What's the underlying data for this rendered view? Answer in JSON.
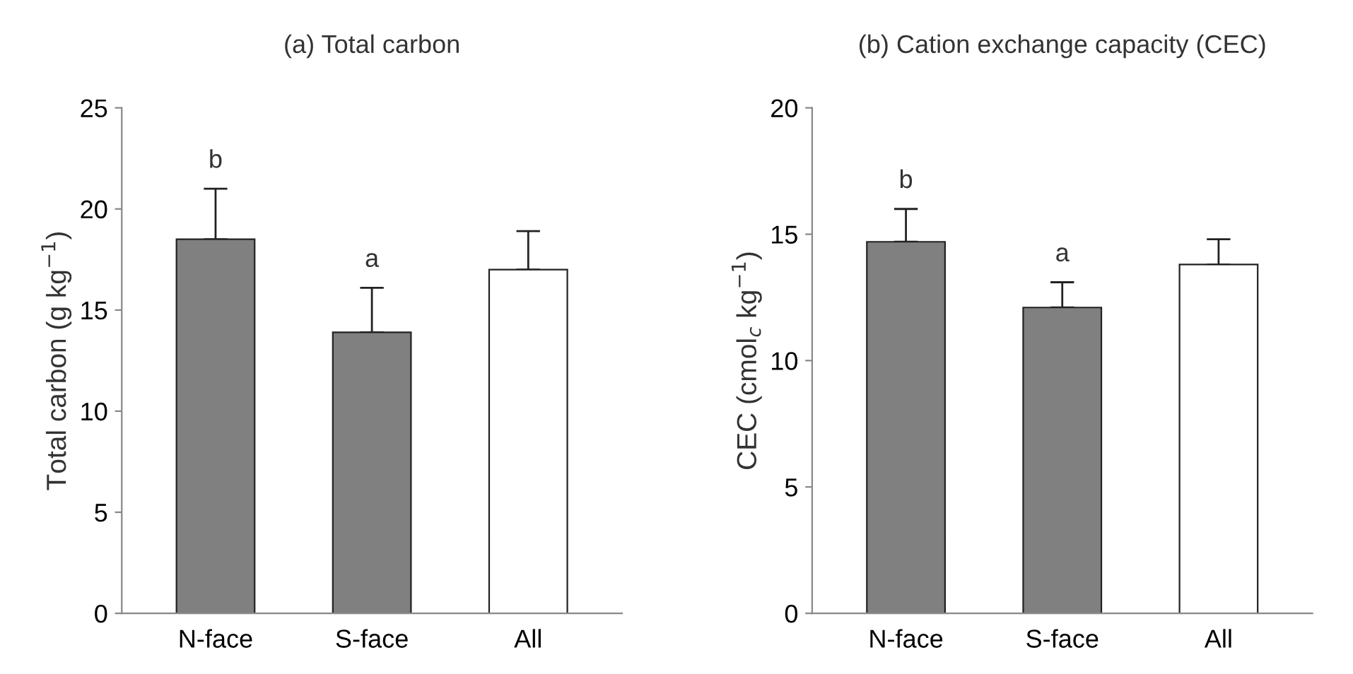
{
  "chart_data": [
    {
      "type": "bar",
      "title": "(a) Total carbon",
      "ylabel": "Total carbon (g kg$^{−1}$)",
      "categories": [
        "N-face",
        "S-face",
        "All"
      ],
      "values": [
        18.5,
        13.9,
        17.0
      ],
      "colors": [
        "#808080",
        "#808080",
        "#ffffff"
      ],
      "errors": [
        [
          18.5,
          21.0
        ],
        [
          13.9,
          16.1
        ],
        [
          17.0,
          18.9
        ]
      ],
      "ylim": [
        0,
        25
      ],
      "yticks": [
        0,
        5,
        10,
        15,
        20,
        25
      ],
      "grid": false,
      "legend": false,
      "annotations": [
        {
          "text": "b",
          "x": "N-face",
          "y": 21.0
        },
        {
          "text": "a",
          "x": "S-face",
          "y": 16.1
        }
      ]
    },
    {
      "type": "bar",
      "title": "(b) Cation exchange capacity (CEC)",
      "ylabel": "CEC (cmol$_{c}$ kg$^{−1}$)",
      "categories": [
        "N-face",
        "S-face",
        "All"
      ],
      "values": [
        14.7,
        12.1,
        13.8
      ],
      "colors": [
        "#808080",
        "#808080",
        "#ffffff"
      ],
      "errors": [
        [
          14.7,
          16.0
        ],
        [
          12.1,
          13.1
        ],
        [
          13.8,
          14.8
        ]
      ],
      "ylim": [
        0,
        20
      ],
      "yticks": [
        0,
        5,
        10,
        15,
        20
      ],
      "grid": false,
      "legend": false,
      "annotations": [
        {
          "text": "b",
          "x": "N-face",
          "y": 16.0
        },
        {
          "text": "a",
          "x": "S-face",
          "y": 13.1
        }
      ]
    }
  ]
}
